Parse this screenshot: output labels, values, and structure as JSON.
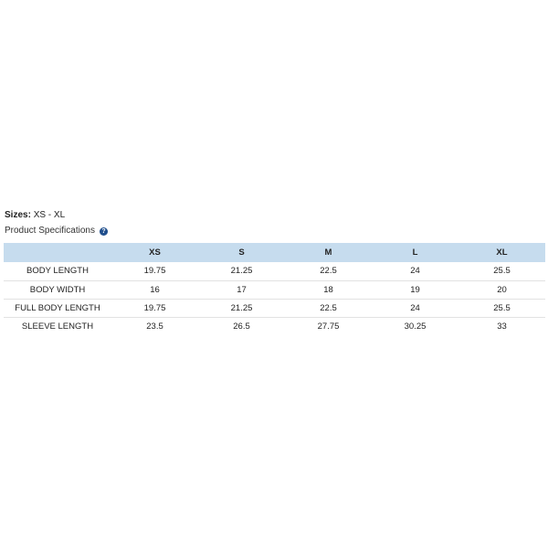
{
  "sizes": {
    "label": "Sizes:",
    "value": "XS - XL"
  },
  "specs_title": "Product Specifications",
  "help_icon": "question-circle-icon",
  "accent_color": "#c6dcee",
  "table": {
    "columns": [
      "",
      "XS",
      "S",
      "M",
      "L",
      "XL"
    ],
    "rows": [
      {
        "label": "BODY LENGTH",
        "values": [
          "19.75",
          "21.25",
          "22.5",
          "24",
          "25.5"
        ]
      },
      {
        "label": "BODY WIDTH",
        "values": [
          "16",
          "17",
          "18",
          "19",
          "20"
        ]
      },
      {
        "label": "FULL BODY LENGTH",
        "values": [
          "19.75",
          "21.25",
          "22.5",
          "24",
          "25.5"
        ]
      },
      {
        "label": "SLEEVE LENGTH",
        "values": [
          "23.5",
          "26.5",
          "27.75",
          "30.25",
          "33"
        ]
      }
    ]
  }
}
